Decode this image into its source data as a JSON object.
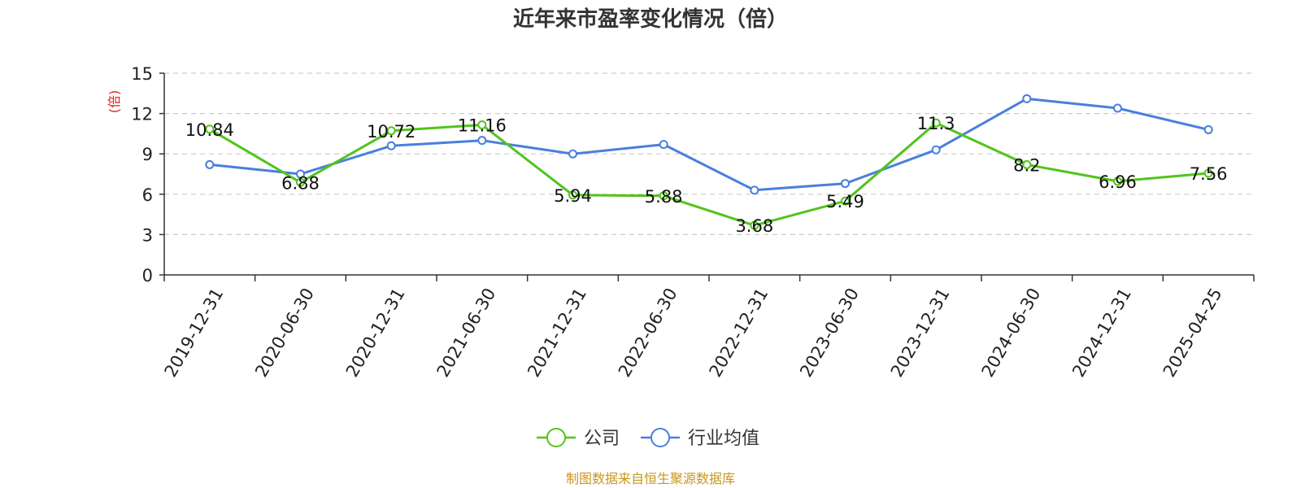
{
  "chart_data": {
    "type": "line",
    "title": "近年来市盈率变化情况（倍）",
    "ylabel": "(倍)",
    "xlabel": "",
    "ylim": [
      0,
      15
    ],
    "yticks": [
      "0",
      "3",
      "6",
      "9",
      "12",
      "15"
    ],
    "ytick_values": [
      0,
      3,
      6,
      9,
      12,
      15
    ],
    "grid": true,
    "legend_position": "bottom-center",
    "categories": [
      "2019-12-31",
      "2020-06-30",
      "2020-12-31",
      "2021-06-30",
      "2021-12-31",
      "2022-06-30",
      "2022-12-31",
      "2023-06-30",
      "2023-12-31",
      "2024-06-30",
      "2024-12-31",
      "2025-04-25"
    ],
    "series": [
      {
        "name": "公司",
        "color": "#52c41a",
        "values": [
          10.84,
          6.88,
          10.72,
          11.16,
          5.94,
          5.88,
          3.68,
          5.49,
          11.3,
          8.2,
          6.96,
          7.56
        ],
        "labels": [
          "10.84",
          "6.88",
          "10.72",
          "11.16",
          "5.94",
          "5.88",
          "3.68",
          "5.49",
          "11.3",
          "8.2",
          "6.96",
          "7.56"
        ]
      },
      {
        "name": "行业均值",
        "color": "#4a7fdc",
        "values": [
          8.2,
          7.5,
          9.6,
          10.0,
          9.0,
          9.7,
          6.3,
          6.8,
          9.3,
          13.1,
          12.4,
          10.8
        ]
      }
    ]
  },
  "source": "制图数据来自恒生聚源数据库",
  "colors": {
    "ylabel": "#e02020",
    "source": "#c8961e",
    "axis": "#333333",
    "grid": "#cccccc"
  }
}
